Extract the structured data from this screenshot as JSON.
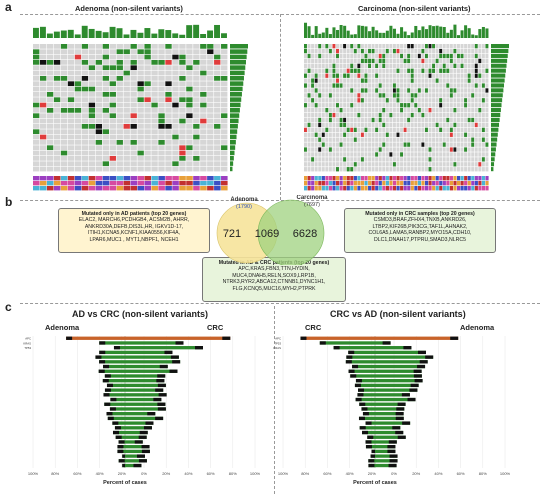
{
  "panel_a": {
    "label": "a",
    "left_title": "Adenoma (non-silent variants)",
    "right_title": "Carcinoma (non-silent variants)"
  },
  "panel_b": {
    "label": "b",
    "venn": {
      "set1_name": "Adenoma",
      "set1_total": "(1790)",
      "set2_name": "Carcinoma",
      "set2_total": "(7697)",
      "only_set1": "721",
      "overlap": "1069",
      "only_set2": "6628",
      "set1_color": "#f6e39a",
      "set2_color": "#9fd27f"
    },
    "box_ad": {
      "title": "Mutated only in AD patients (top 20 genes)",
      "lines": [
        "ELAC2, MARCH6,PCDHGB4, ACSM2B, AHRR,",
        "ANKRD30A,DEFB,DIS3L,HR, IGKV1D-17,",
        "ITIH1,KCNA5,KCNF1,KIAA0556,KIF4A,",
        "LPAR6,MUC1 , MYT1,NBPF1, NCEH1"
      ],
      "color": "#fff4d0"
    },
    "box_crc": {
      "title": "Mutated only in CRC samples (top 20 genes)",
      "lines": [
        "CSMD3,BRAF,ZFHX4,TNXB,ANKRD26,",
        "LTBP2,KIF26B,PIK3CG,TAF1L,AHNAK2,",
        "COL6A5,LAMA5,RANBP2,MYO15A,CDH10,",
        "DLC1,DNAH17,PTPRU,SMAD3,NLRC5"
      ],
      "color": "#e8f4dc"
    },
    "box_both": {
      "title": "Mutated in AD & CRC patients (top 20 genes)",
      "lines": [
        "APC,KRAS,FBN3,TTN,HYDIN,",
        "MUC4,DNAH5,RELN,SOX9,LRP1B,",
        "NTRK3,RYR2,ABCA12,CTNNB1,DYNC1H1,",
        "FLG,KCNQ5,MUC16,MYH2,PTPRK"
      ],
      "color": "#e8f4dc"
    }
  },
  "panel_c": {
    "label": "c",
    "left": {
      "title": "AD vs CRC (non-silent variants)",
      "left_group": "Adenoma",
      "right_group": "CRC",
      "xlabel": "Percent of cases",
      "xticks": [
        "100%",
        "80%",
        "60%",
        "40%",
        "20%",
        "0%",
        "20%",
        "40%",
        "60%",
        "80%",
        "100%"
      ]
    },
    "right": {
      "title": "CRC vs AD (non-silent variants)",
      "left_group": "CRC",
      "right_group": "Adenoma",
      "xlabel": "Percent of cases",
      "xticks": [
        "100%",
        "80%",
        "60%",
        "40%",
        "20%",
        "0%",
        "20%",
        "40%",
        "60%",
        "80%",
        "100%"
      ]
    }
  },
  "colors": {
    "missense": "#2e8b2e",
    "frameshift": "#111111",
    "nonsense": "#e03c3c",
    "other": "#6b3fa0",
    "grid": "#d6d6d6",
    "bar_orange": "#c8632a"
  },
  "chart_data": [
    {
      "type": "bar",
      "title": "AD vs CRC (non-silent variants)",
      "xlabel": "Percent of cases",
      "categories": [
        "APC",
        "KRAS",
        "TP53"
      ],
      "series": [
        {
          "name": "Adenoma",
          "values": [
            64,
            28,
            12
          ]
        },
        {
          "name": "CRC",
          "values": [
            81,
            45,
            60
          ]
        }
      ],
      "xlim": [
        -100,
        100
      ]
    },
    {
      "type": "bar",
      "title": "CRC vs AD (non-silent variants)",
      "xlabel": "Percent of cases",
      "categories": [
        "APC",
        "TP53",
        "KRAS"
      ],
      "series": [
        {
          "name": "CRC",
          "values": [
            81,
            60,
            45
          ]
        },
        {
          "name": "Adenoma",
          "values": [
            64,
            12,
            28
          ]
        }
      ],
      "xlim": [
        -100,
        100
      ]
    }
  ]
}
